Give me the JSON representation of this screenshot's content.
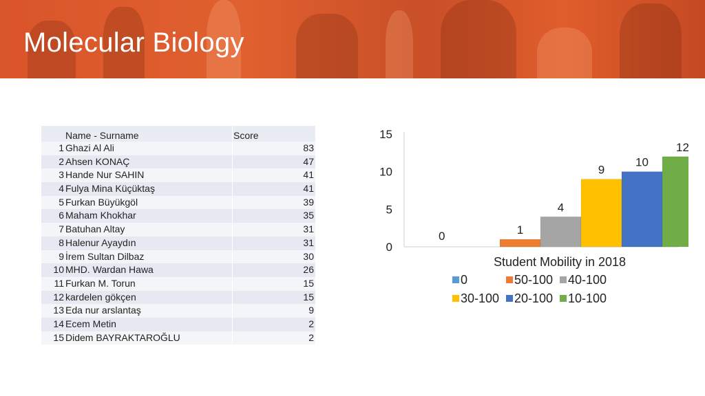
{
  "header": {
    "title": "Molecular Biology"
  },
  "table": {
    "columns": [
      "Name - Surname",
      "Score"
    ],
    "rows": [
      {
        "num": "1",
        "name": "Ghazi Al Ali",
        "score": "83"
      },
      {
        "num": "2",
        "name": "Ahsen KONAÇ",
        "score": "47"
      },
      {
        "num": "3",
        "name": "Hande Nur SAHIN",
        "score": "41"
      },
      {
        "num": "4",
        "name": "Fulya Mina Küçüktaş",
        "score": "41"
      },
      {
        "num": "5",
        "name": "Furkan Büyükgöl",
        "score": "39"
      },
      {
        "num": "6",
        "name": "Maham Khokhar",
        "score": "35"
      },
      {
        "num": "7",
        "name": "Batuhan Altay",
        "score": "31"
      },
      {
        "num": "8",
        "name": "Halenur Ayaydın",
        "score": "31"
      },
      {
        "num": "9",
        "name": "İrem Sultan Dilbaz",
        "score": "30"
      },
      {
        "num": "10",
        "name": "MHD. Wardan Hawa",
        "score": "26"
      },
      {
        "num": "11",
        "name": "Furkan M. Torun",
        "score": "15"
      },
      {
        "num": "12",
        "name": "kardelen gökçen",
        "score": "15"
      },
      {
        "num": "13",
        "name": "Eda nur arslantaş",
        "score": "9"
      },
      {
        "num": "14",
        "name": "Ecem Metin",
        "score": "2"
      },
      {
        "num": "15",
        "name": "Didem BAYRAKTAROĞLU",
        "score": "2"
      }
    ]
  },
  "chart_data": {
    "type": "bar",
    "title": "Student Mobility in 2018",
    "categories": [
      "0",
      "50-100",
      "40-100",
      "30-100",
      "20-100",
      "10-100"
    ],
    "values": [
      0,
      1,
      4,
      9,
      10,
      12
    ],
    "colors": [
      "#5b9bd5",
      "#ed7d31",
      "#a5a5a5",
      "#ffc000",
      "#4472c4",
      "#70ad47"
    ],
    "ylim": [
      0,
      15
    ],
    "yticks": [
      0,
      5,
      10,
      15
    ],
    "legend": "bottom",
    "grid": false
  }
}
